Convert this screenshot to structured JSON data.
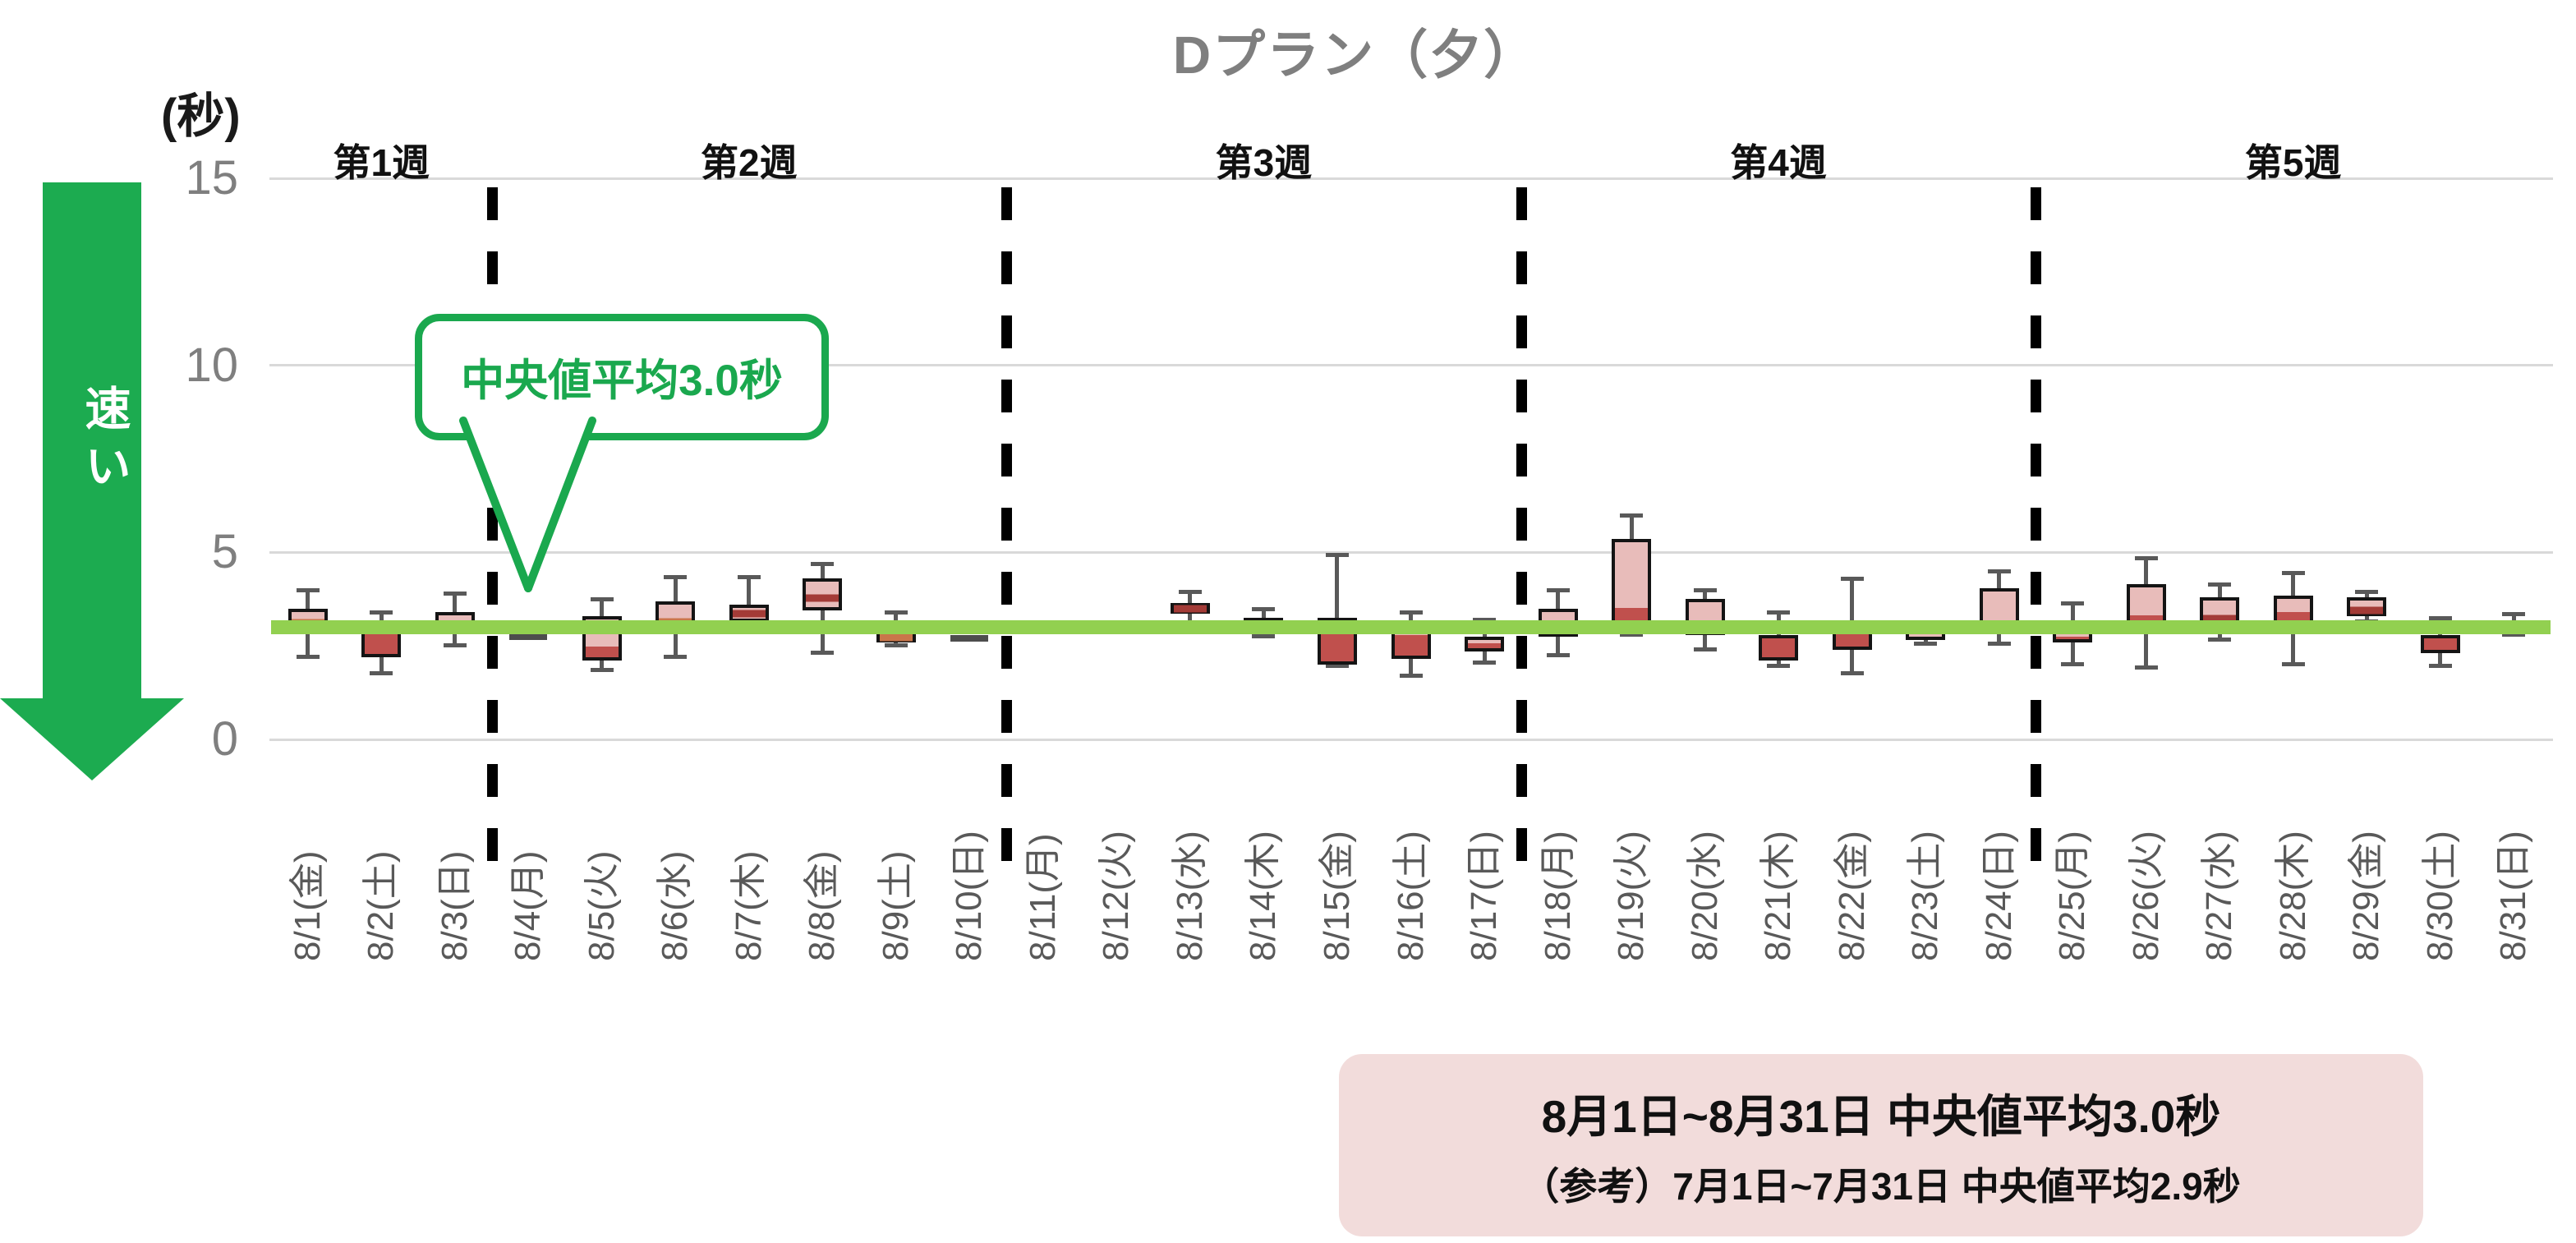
{
  "title": "Dプラン（夕）",
  "y_axis": {
    "unit_label": "(秒)",
    "ticks": [
      15,
      10,
      5,
      0
    ],
    "max": 15
  },
  "arrow": {
    "label": "速い",
    "color": "#1cab50"
  },
  "week_labels": [
    "第1週",
    "第2週",
    "第3週",
    "第4週",
    "第5週"
  ],
  "week_breaks_after_day": [
    3,
    10,
    17,
    24
  ],
  "callout": {
    "text": "中央値平均3.0秒",
    "color": "#1aa84e"
  },
  "reference_line": {
    "value": 3.0,
    "color": "#92d050"
  },
  "summary_box": {
    "line1": "8月1日~8月31日  中央値平均3.0秒",
    "line2": "（参考）7月1日~7月31日  中央値平均2.9秒",
    "background": "#f2dcdb"
  },
  "colors": {
    "box_pink": "#e8bcba",
    "box_dark": "#c0504d",
    "median_orange": "#c9764a",
    "median_dark": "#a33b37",
    "box_border": "#141414",
    "whisker": "#595959",
    "flat_mark": "#4d4d4d",
    "gridline": "#d9d9d9",
    "title_gray": "#7f7f7f",
    "axis_label_gray": "#595959"
  },
  "chart_data": {
    "type": "boxplot",
    "title": "Dプラン（夕）",
    "ylabel": "(秒)",
    "ylim": [
      0,
      15
    ],
    "reference_median_average": 3.0,
    "days": [
      {
        "label": "8/1(金)",
        "min": 2.2,
        "q1": 3.0,
        "median": 3.05,
        "q3": 3.5,
        "max": 4.0,
        "color": "pink",
        "median_marker": "orange"
      },
      {
        "label": "8/2(土)",
        "min": 1.75,
        "q1": 2.2,
        "median": 2.95,
        "q3": 3.0,
        "max": 3.4,
        "color": "dark",
        "median_marker": "none"
      },
      {
        "label": "8/3(日)",
        "min": 2.5,
        "q1": 2.8,
        "median": 2.85,
        "q3": 3.4,
        "max": 3.9,
        "color": "pink",
        "median_marker": "dark"
      },
      {
        "label": "8/4(月)",
        "min": 2.75,
        "q1": 2.75,
        "median": 2.75,
        "q3": 2.75,
        "max": 2.75,
        "color": "flat",
        "median_marker": "none"
      },
      {
        "label": "8/5(火)",
        "min": 1.85,
        "q1": 2.1,
        "median": 2.45,
        "q3": 3.3,
        "max": 3.75,
        "color": "split",
        "median_marker": "none"
      },
      {
        "label": "8/6(水)",
        "min": 2.2,
        "q1": 2.8,
        "median": 3.1,
        "q3": 3.7,
        "max": 4.35,
        "color": "pink",
        "median_marker": "orange"
      },
      {
        "label": "8/7(木)",
        "min": 3.1,
        "q1": 3.15,
        "median": 3.35,
        "q3": 3.6,
        "max": 4.35,
        "color": "pink",
        "median_marker": "dark"
      },
      {
        "label": "8/8(金)",
        "min": 2.3,
        "q1": 3.45,
        "median": 3.75,
        "q3": 4.3,
        "max": 4.7,
        "color": "pink",
        "median_marker": "dark"
      },
      {
        "label": "8/9(土)",
        "min": 2.5,
        "q1": 2.6,
        "median": 2.75,
        "q3": 2.85,
        "max": 3.4,
        "color": "pink",
        "median_marker": "orange"
      },
      {
        "label": "8/10(日)",
        "min": 2.7,
        "q1": 2.7,
        "median": 2.7,
        "q3": 2.7,
        "max": 2.7,
        "color": "flat",
        "median_marker": "none"
      },
      {
        "label": "8/11(月)",
        "min": 2.9,
        "q1": 2.9,
        "median": 2.9,
        "q3": 2.9,
        "max": 2.9,
        "color": "flat",
        "median_marker": "none"
      },
      {
        "label": "8/12(火)",
        "min": 3.1,
        "q1": 3.1,
        "median": 3.1,
        "q3": 3.1,
        "max": 3.1,
        "color": "flat",
        "median_marker": "none"
      },
      {
        "label": "8/13(水)",
        "min": 3.1,
        "q1": 3.35,
        "median": 3.5,
        "q3": 3.65,
        "max": 3.95,
        "color": "dark",
        "median_marker": "dark"
      },
      {
        "label": "8/14(木)",
        "min": 2.75,
        "q1": 3.05,
        "median": 3.1,
        "q3": 3.25,
        "max": 3.5,
        "color": "pink",
        "median_marker": "none"
      },
      {
        "label": "8/15(金)",
        "min": 1.95,
        "q1": 2.0,
        "median": 2.95,
        "q3": 3.25,
        "max": 4.95,
        "color": "split",
        "median_marker": "none"
      },
      {
        "label": "8/16(土)",
        "min": 1.7,
        "q1": 2.15,
        "median": 2.85,
        "q3": 2.95,
        "max": 3.4,
        "color": "split",
        "median_marker": "none"
      },
      {
        "label": "8/17(日)",
        "min": 2.05,
        "q1": 2.35,
        "median": 2.6,
        "q3": 2.75,
        "max": 3.2,
        "color": "split",
        "median_marker": "none"
      },
      {
        "label": "8/18(月)",
        "min": 2.25,
        "q1": 2.75,
        "median": 2.85,
        "q3": 3.5,
        "max": 4.0,
        "color": "pink",
        "median_marker": "orange"
      },
      {
        "label": "8/19(火)",
        "min": 2.8,
        "q1": 3.1,
        "median": 3.45,
        "q3": 5.35,
        "max": 6.0,
        "color": "split",
        "median_marker": "none"
      },
      {
        "label": "8/20(水)",
        "min": 2.4,
        "q1": 2.8,
        "median": 2.85,
        "q3": 3.75,
        "max": 4.0,
        "color": "pink",
        "median_marker": "dark"
      },
      {
        "label": "8/21(木)",
        "min": 1.95,
        "q1": 2.1,
        "median": 2.75,
        "q3": 2.8,
        "max": 3.4,
        "color": "dark",
        "median_marker": "none"
      },
      {
        "label": "8/22(金)",
        "min": 1.75,
        "q1": 2.4,
        "median": 2.9,
        "q3": 3.15,
        "max": 4.3,
        "color": "split",
        "median_marker": "none"
      },
      {
        "label": "8/23(土)",
        "min": 2.55,
        "q1": 2.65,
        "median": 2.85,
        "q3": 2.95,
        "max": 3.15,
        "color": "pink",
        "median_marker": "none"
      },
      {
        "label": "8/24(日)",
        "min": 2.55,
        "q1": 2.8,
        "median": 2.85,
        "q3": 4.05,
        "max": 4.5,
        "color": "pink",
        "median_marker": "orange"
      },
      {
        "label": "8/25(月)",
        "min": 2.0,
        "q1": 2.6,
        "median": 2.7,
        "q3": 2.95,
        "max": 3.65,
        "color": "split",
        "median_marker": "none"
      },
      {
        "label": "8/26(火)",
        "min": 1.9,
        "q1": 3.05,
        "median": 3.25,
        "q3": 4.15,
        "max": 4.85,
        "color": "split",
        "median_marker": "none"
      },
      {
        "label": "8/27(水)",
        "min": 2.65,
        "q1": 3.1,
        "median": 3.15,
        "q3": 3.8,
        "max": 4.15,
        "color": "pink",
        "median_marker": "dark"
      },
      {
        "label": "8/28(木)",
        "min": 2.0,
        "q1": 2.9,
        "median": 3.4,
        "q3": 3.85,
        "max": 4.45,
        "color": "split",
        "median_marker": "none"
      },
      {
        "label": "8/29(金)",
        "min": 3.15,
        "q1": 3.3,
        "median": 3.4,
        "q3": 3.8,
        "max": 3.95,
        "color": "pink",
        "median_marker": "dark"
      },
      {
        "label": "8/30(土)",
        "min": 1.95,
        "q1": 2.3,
        "median": 2.75,
        "q3": 2.8,
        "max": 3.25,
        "color": "dark",
        "median_marker": "none"
      },
      {
        "label": "8/31(日)",
        "min": 2.8,
        "q1": 3.0,
        "median": 3.05,
        "q3": 3.1,
        "max": 3.35,
        "color": "dark",
        "median_marker": "none"
      }
    ]
  }
}
